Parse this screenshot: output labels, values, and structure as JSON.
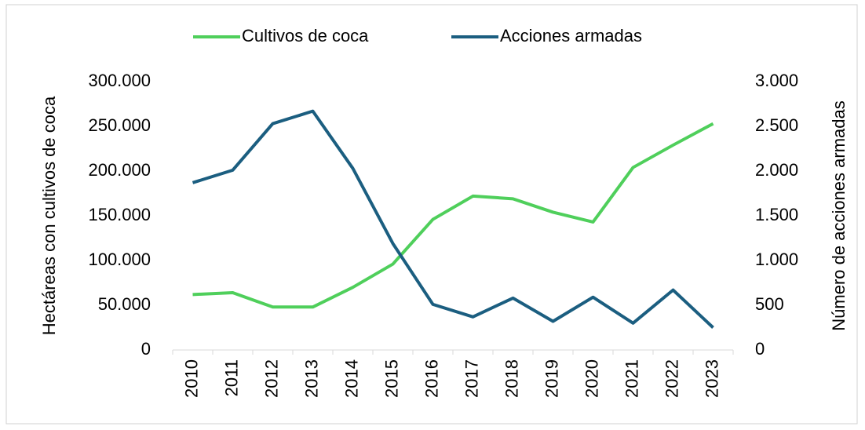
{
  "chart_data": {
    "type": "line",
    "y_label": "Hectáreas con cultivos de coca",
    "y2_label": "Número de acciones armadas",
    "categories": [
      "2010",
      "2011",
      "2012",
      "2013",
      "2014",
      "2015",
      "2016",
      "2017",
      "2018",
      "2019",
      "2020",
      "2021",
      "2022",
      "2023"
    ],
    "series": [
      {
        "name": "Cultivos de coca",
        "color": "#4fcf5b",
        "values": [
          62000,
          64000,
          48000,
          48000,
          70000,
          96000,
          146000,
          172000,
          169000,
          154000,
          143000,
          204000,
          229000,
          253000
        ]
      },
      {
        "name": "Acciones armadas",
        "color": "#1b5e80",
        "axis": "y2",
        "values": [
          1870,
          2010,
          2530,
          2670,
          2030,
          1190,
          510,
          370,
          580,
          320,
          590,
          300,
          670,
          250
        ]
      }
    ],
    "ylim": [
      0,
      300000
    ],
    "yticks": [
      0,
      {
        "value": 50000,
        "label": "50.000"
      },
      {
        "value": 100000,
        "label": "100.000"
      },
      {
        "value": 150000,
        "label": "150.000"
      },
      {
        "value": 200000,
        "label": "200.000"
      },
      {
        "value": 250000,
        "label": "250.000"
      },
      {
        "value": 300000,
        "label": "300.000"
      }
    ],
    "y2lim": [
      0,
      3000
    ],
    "y2ticks": [
      0,
      500,
      {
        "value": 1000,
        "label": "1.000"
      },
      {
        "value": 1500,
        "label": "1.500"
      },
      {
        "value": 2000,
        "label": "2.000"
      },
      {
        "value": 2500,
        "label": "2.500"
      },
      {
        "value": 3000,
        "label": "3.000"
      }
    ],
    "legend": "top"
  }
}
